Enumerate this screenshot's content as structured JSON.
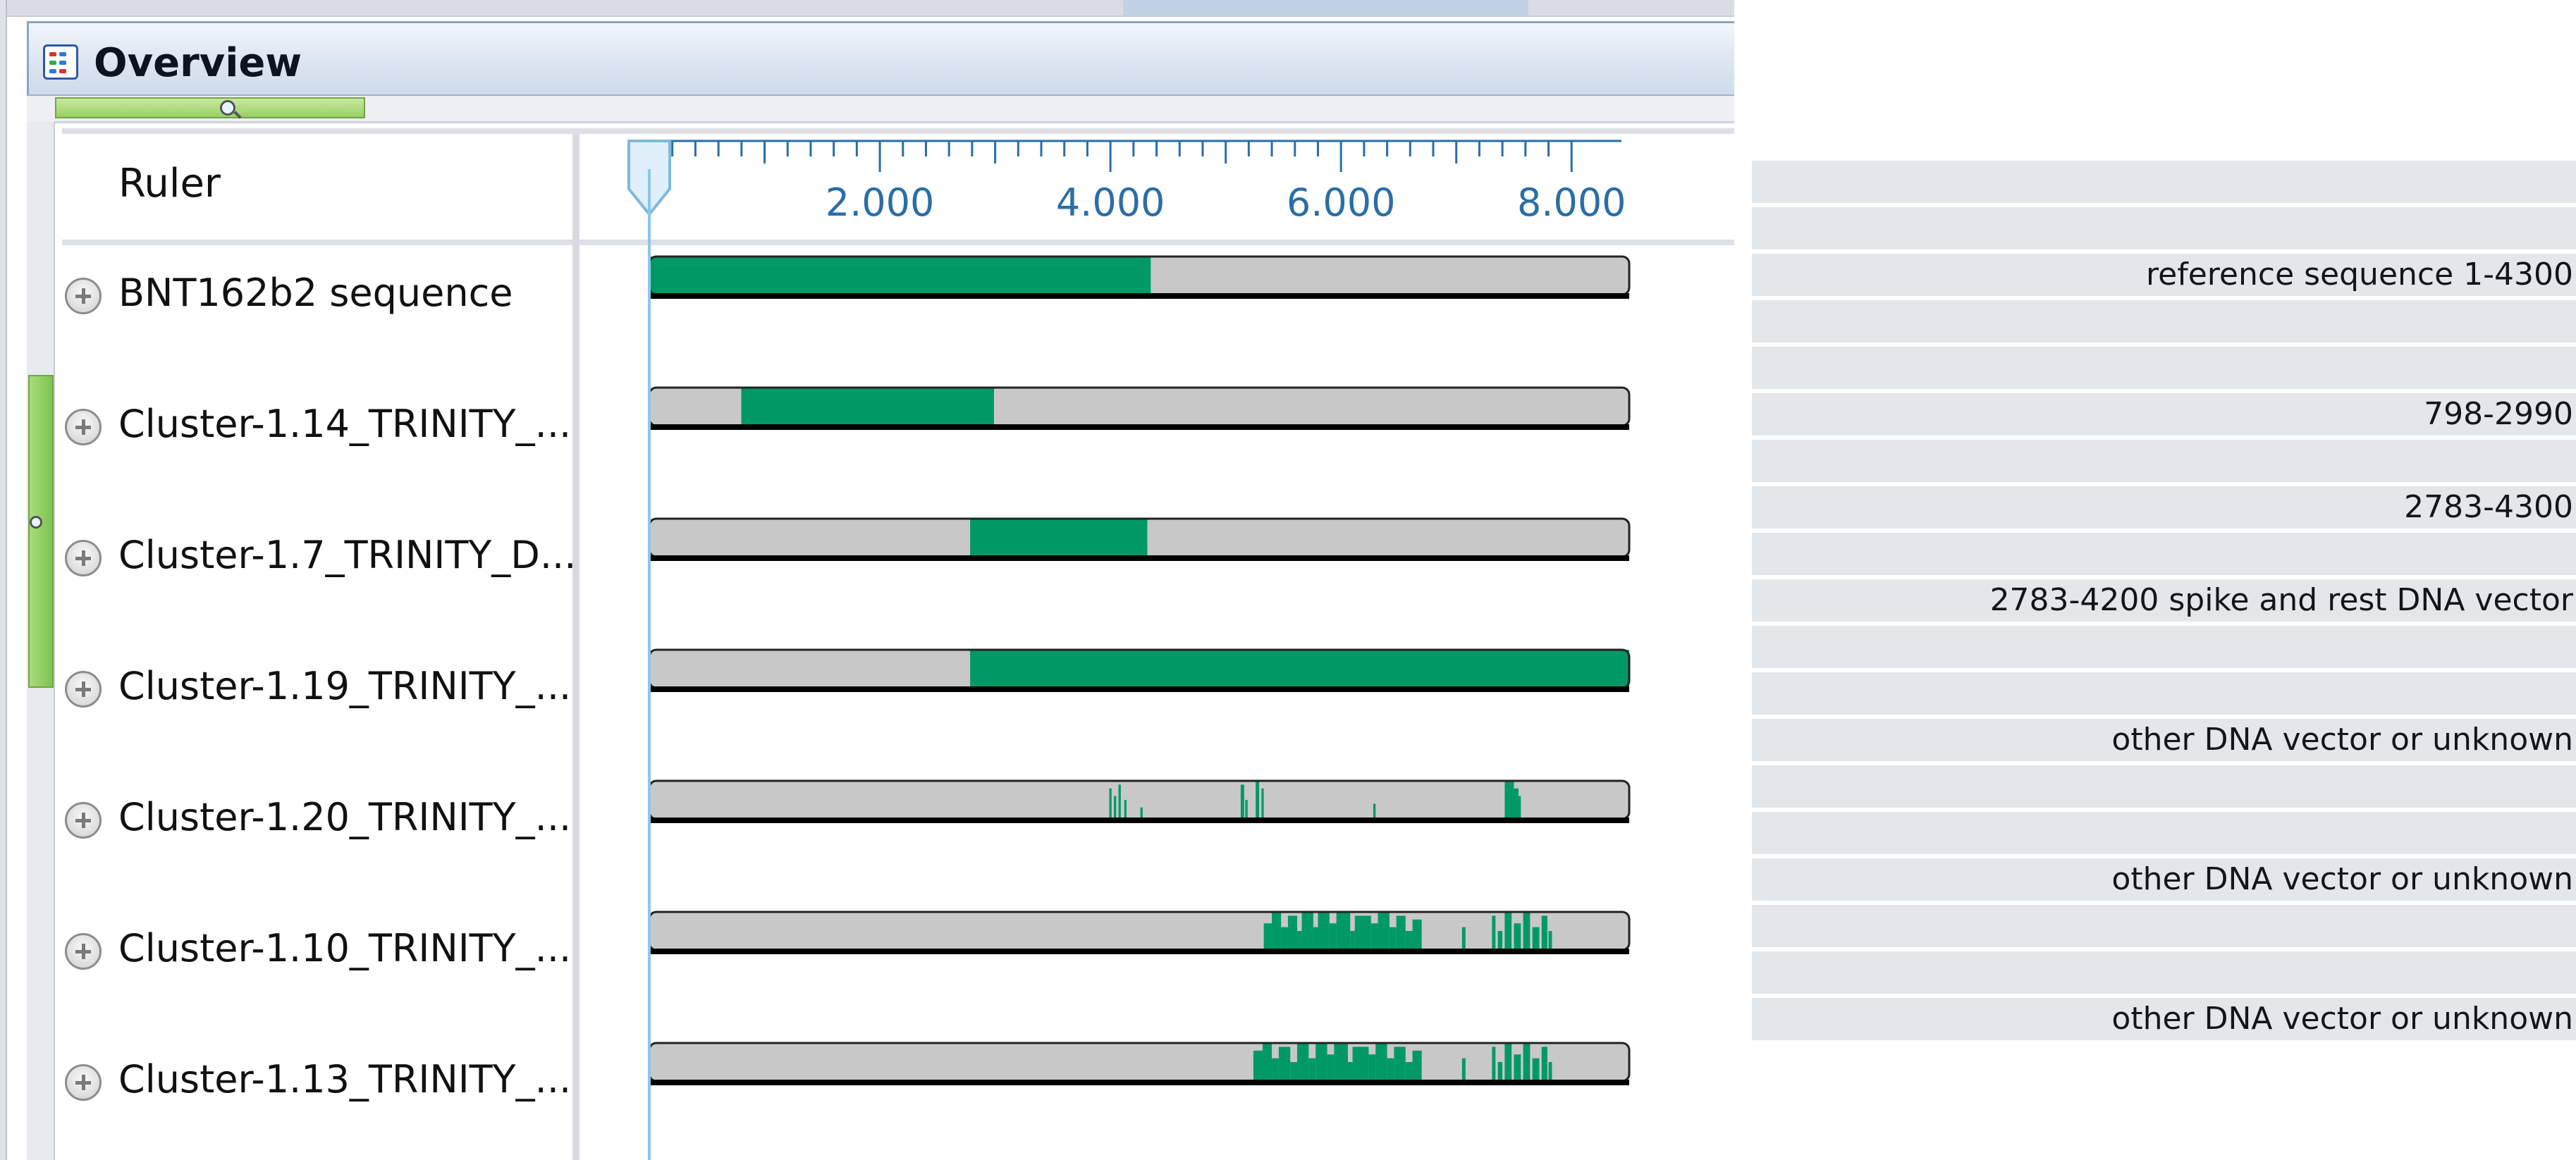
{
  "window": {
    "title": "Overview",
    "icon": "overview-icon"
  },
  "ruler": {
    "label": "Ruler",
    "max_value": 8500,
    "ticks": [
      {
        "value": 2000,
        "label": "2.000"
      },
      {
        "value": 4000,
        "label": "4.000"
      },
      {
        "value": 6000,
        "label": "6.000"
      },
      {
        "value": 8000,
        "label": "8.000"
      }
    ]
  },
  "colors": {
    "coverage": "#009966",
    "track_bg": "#c8c8c8",
    "tick_label": "#2a6ea8",
    "note_bg": "#e4e7ea"
  },
  "tracks": [
    {
      "name": "BNT162b2 sequence",
      "length": 8500,
      "coverage": [
        [
          0,
          4350,
          1.0
        ]
      ],
      "note": "reference sequence 1-4300"
    },
    {
      "name": "Cluster-1.14_TRINITY_...",
      "length": 8500,
      "coverage": [
        [
          798,
          2990,
          1.0
        ]
      ],
      "note": "798-2990"
    },
    {
      "name": "Cluster-1.7_TRINITY_D...",
      "length": 8500,
      "coverage": [
        [
          2783,
          4320,
          1.0
        ]
      ],
      "note": "2783-4300"
    },
    {
      "name": "Cluster-1.19_TRINITY_...",
      "length": 8500,
      "coverage": [
        [
          2783,
          8500,
          1.0
        ]
      ],
      "note": "2783-4200 spike and  rest DNA vector"
    },
    {
      "name": "Cluster-1.20_TRINITY_...",
      "length": 8500,
      "coverage": [
        [
          3990,
          4010,
          0.8
        ],
        [
          4030,
          4050,
          0.6
        ],
        [
          4070,
          4090,
          0.9
        ],
        [
          4120,
          4140,
          0.5
        ],
        [
          4260,
          4280,
          0.3
        ],
        [
          5130,
          5160,
          0.9
        ],
        [
          5170,
          5190,
          0.5
        ],
        [
          5260,
          5290,
          1.0
        ],
        [
          5310,
          5330,
          0.8
        ],
        [
          6280,
          6300,
          0.4
        ],
        [
          7420,
          7500,
          1.0
        ],
        [
          7500,
          7540,
          0.8
        ],
        [
          7540,
          7560,
          0.6
        ]
      ],
      "note": "other DNA vector or unknown"
    },
    {
      "name": "Cluster-1.10_TRINITY_...",
      "length": 8500,
      "coverage": [
        [
          5330,
          5400,
          0.7
        ],
        [
          5400,
          5480,
          1.0
        ],
        [
          5480,
          5540,
          0.6
        ],
        [
          5540,
          5620,
          0.9
        ],
        [
          5620,
          5660,
          0.5
        ],
        [
          5660,
          5760,
          1.0
        ],
        [
          5760,
          5800,
          0.6
        ],
        [
          5800,
          5900,
          1.0
        ],
        [
          5900,
          5960,
          0.7
        ],
        [
          5960,
          6080,
          1.0
        ],
        [
          6080,
          6120,
          0.5
        ],
        [
          6120,
          6260,
          0.9
        ],
        [
          6260,
          6320,
          0.7
        ],
        [
          6320,
          6420,
          1.0
        ],
        [
          6420,
          6480,
          0.6
        ],
        [
          6480,
          6560,
          0.9
        ],
        [
          6560,
          6620,
          0.5
        ],
        [
          6620,
          6700,
          0.8
        ],
        [
          7050,
          7080,
          0.6
        ],
        [
          7310,
          7340,
          0.9
        ],
        [
          7360,
          7400,
          0.5
        ],
        [
          7420,
          7480,
          1.0
        ],
        [
          7500,
          7560,
          0.7
        ],
        [
          7580,
          7640,
          1.0
        ],
        [
          7660,
          7720,
          0.6
        ],
        [
          7740,
          7790,
          0.9
        ],
        [
          7800,
          7830,
          0.5
        ]
      ],
      "note": "other DNA vector or unknown"
    },
    {
      "name": "Cluster-1.13_TRINITY_...",
      "length": 8500,
      "coverage": [
        [
          5240,
          5320,
          0.8
        ],
        [
          5320,
          5400,
          1.0
        ],
        [
          5400,
          5460,
          0.6
        ],
        [
          5460,
          5560,
          0.9
        ],
        [
          5560,
          5620,
          0.5
        ],
        [
          5620,
          5720,
          1.0
        ],
        [
          5720,
          5780,
          0.6
        ],
        [
          5780,
          5880,
          1.0
        ],
        [
          5880,
          5940,
          0.7
        ],
        [
          5940,
          6060,
          1.0
        ],
        [
          6060,
          6100,
          0.5
        ],
        [
          6100,
          6240,
          0.9
        ],
        [
          6240,
          6300,
          0.7
        ],
        [
          6300,
          6400,
          1.0
        ],
        [
          6400,
          6460,
          0.6
        ],
        [
          6460,
          6560,
          0.9
        ],
        [
          6560,
          6620,
          0.5
        ],
        [
          6620,
          6700,
          0.8
        ],
        [
          7050,
          7080,
          0.6
        ],
        [
          7310,
          7340,
          0.9
        ],
        [
          7360,
          7400,
          0.5
        ],
        [
          7420,
          7480,
          1.0
        ],
        [
          7500,
          7560,
          0.7
        ],
        [
          7580,
          7640,
          1.0
        ],
        [
          7660,
          7720,
          0.6
        ],
        [
          7740,
          7790,
          0.9
        ],
        [
          7800,
          7830,
          0.5
        ]
      ],
      "note": "other DNA vector or unknown"
    }
  ],
  "notes_panel": {
    "rows": [
      "",
      "",
      "reference sequence 1-4300",
      "",
      "",
      "798-2990",
      "",
      "2783-4300",
      "",
      "2783-4200 spike and  rest DNA vector",
      "",
      "",
      "other DNA vector or unknown",
      "",
      "",
      "other DNA vector or unknown",
      "",
      "",
      "other DNA vector or unknown"
    ]
  }
}
